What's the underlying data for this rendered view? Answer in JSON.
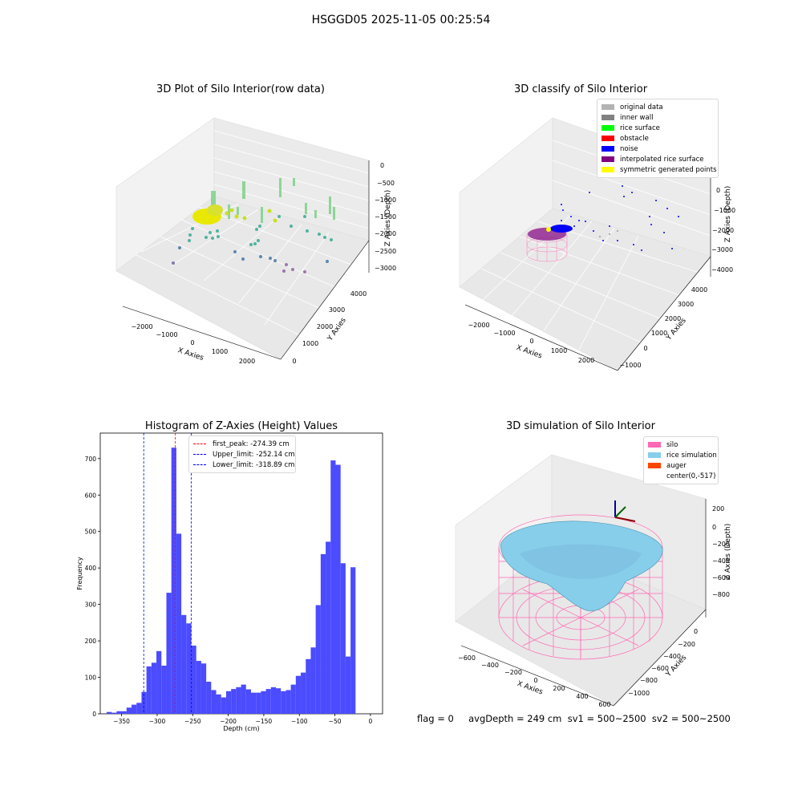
{
  "suptitle": "HSGGD05 2025-11-05 00:25:54",
  "footer": "flag = 0     avgDepth = 249 cm  sv1 = 500~2500  sv2 = 500~2500",
  "panels": {
    "raw": {
      "title": "3D Plot of Silo Interior(row data)",
      "xlabel": "X Axies",
      "ylabel": "Y Axies",
      "zlabel": "Z Axies (Depth)",
      "xticks": [
        "−2000",
        "−1000",
        "0",
        "1000",
        "2000"
      ],
      "yticks": [
        "0",
        "1000",
        "2000",
        "3000",
        "4000"
      ],
      "zticks": [
        "0",
        "−500",
        "−1000",
        "−1500",
        "−2000",
        "−2500",
        "−3000"
      ]
    },
    "classify": {
      "title": "3D classify of Silo Interior",
      "xlabel": "X Axies",
      "ylabel": "Y Axies",
      "zlabel": "Z Axies (Depth)",
      "xticks": [
        "−2000",
        "−1000",
        "0",
        "1000",
        "2000"
      ],
      "yticks": [
        "−1000",
        "0",
        "1000",
        "2000",
        "3000",
        "4000"
      ],
      "zticks": [
        "0",
        "−1000",
        "−2000",
        "−3000",
        "−4000"
      ],
      "legend": [
        {
          "label": "original data",
          "color": "#b3b3b3"
        },
        {
          "label": "inner wall",
          "color": "#808080"
        },
        {
          "label": "rice surface",
          "color": "#00ff00"
        },
        {
          "label": "obstacle",
          "color": "#ff0000"
        },
        {
          "label": "noise",
          "color": "#0000ff"
        },
        {
          "label": "interpolated rice surface",
          "color": "#800080"
        },
        {
          "label": "symmetric generated points",
          "color": "#ffff00"
        }
      ]
    },
    "simulation": {
      "title": "3D simulation of Silo Interior",
      "xlabel": "X Axies",
      "ylabel": "Y Axies",
      "zlabel": "Z Axies (Depth)",
      "xticks": [
        "−600",
        "−400",
        "−200",
        "0",
        "200",
        "400",
        "600"
      ],
      "yticks": [
        "0",
        "−200",
        "−400",
        "−600",
        "−800",
        "−1000"
      ],
      "zticks": [
        "200",
        "0",
        "−200",
        "−400",
        "−600",
        "−800"
      ],
      "legend": [
        {
          "label": "silo",
          "color": "#ff69b4"
        },
        {
          "label": "rice simulation",
          "color": "#87ceeb"
        },
        {
          "label": "auger",
          "color": "#ff4500"
        },
        {
          "label": "center(0,-517)",
          "color": ""
        }
      ]
    }
  },
  "chart_data": {
    "type": "bar",
    "title": "Histogram of Z-Axies (Height) Values",
    "xlabel": "Depth (cm)",
    "ylabel": "Frequency",
    "xlim": [
      -380,
      17
    ],
    "ylim": [
      0,
      770
    ],
    "xticks": [
      -350,
      -300,
      -250,
      -200,
      -150,
      -100,
      -50,
      0
    ],
    "yticks": [
      0,
      100,
      200,
      300,
      400,
      500,
      600,
      700
    ],
    "bar_color": "#4b4bff",
    "bin_width": 7,
    "bin_edges_start": -371,
    "values": [
      5,
      3,
      7,
      7,
      17,
      25,
      30,
      60,
      130,
      140,
      172,
      132,
      332,
      730,
      494,
      271,
      248,
      187,
      145,
      138,
      88,
      65,
      53,
      45,
      62,
      68,
      73,
      80,
      67,
      58,
      58,
      62,
      68,
      73,
      70,
      62,
      65,
      80,
      104,
      113,
      150,
      182,
      298,
      438,
      472,
      695,
      683,
      413,
      157,
      402
    ],
    "reference_lines": [
      {
        "label": "first_peak: -274.39 cm",
        "x": -274.39,
        "color": "#ff0000"
      },
      {
        "label": "Upper_limit: -252.14 cm",
        "x": -252.14,
        "color": "#0000ff"
      },
      {
        "label": "Lower_limit: -318.89 cm",
        "x": -318.89,
        "color": "#0000ff"
      }
    ]
  }
}
